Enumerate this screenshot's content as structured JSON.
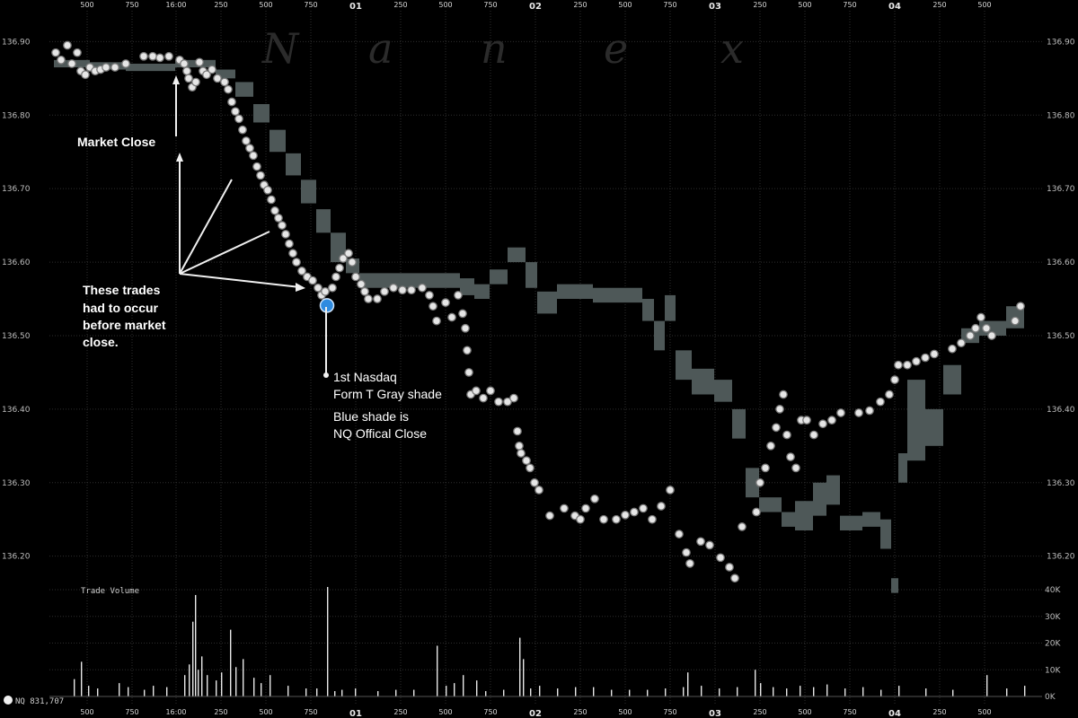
{
  "chart_data": {
    "type": "scatter",
    "watermark": "Nanex",
    "symbol_label": "NQ 831,707",
    "volume_title": "Trade Volume",
    "y_ticks": [
      "136.90",
      "136.80",
      "136.70",
      "136.60",
      "136.50",
      "136.40",
      "136.30",
      "136.20"
    ],
    "y_range": [
      136.13,
      136.92
    ],
    "vol_ticks": [
      "40K",
      "30K",
      "20K",
      "10K",
      "0K"
    ],
    "vol_range": [
      0,
      40000
    ],
    "x_ticks": [
      {
        "x": 97,
        "label": "500",
        "bold": false
      },
      {
        "x": 147,
        "label": "750",
        "bold": false
      },
      {
        "x": 196,
        "label": "16:00",
        "bold": false
      },
      {
        "x": 246,
        "label": "250",
        "bold": false
      },
      {
        "x": 296,
        "label": "500",
        "bold": false
      },
      {
        "x": 346,
        "label": "750",
        "bold": false
      },
      {
        "x": 396,
        "label": "01",
        "bold": true
      },
      {
        "x": 446,
        "label": "250",
        "bold": false
      },
      {
        "x": 496,
        "label": "500",
        "bold": false
      },
      {
        "x": 546,
        "label": "750",
        "bold": false
      },
      {
        "x": 596,
        "label": "02",
        "bold": true
      },
      {
        "x": 646,
        "label": "250",
        "bold": false
      },
      {
        "x": 696,
        "label": "500",
        "bold": false
      },
      {
        "x": 746,
        "label": "750",
        "bold": false
      },
      {
        "x": 796,
        "label": "03",
        "bold": true
      },
      {
        "x": 846,
        "label": "250",
        "bold": false
      },
      {
        "x": 896,
        "label": "500",
        "bold": false
      },
      {
        "x": 946,
        "label": "750",
        "bold": false
      },
      {
        "x": 996,
        "label": "04",
        "bold": true
      },
      {
        "x": 1046,
        "label": "250",
        "bold": false
      },
      {
        "x": 1096,
        "label": "500",
        "bold": false
      }
    ],
    "bid_ask_band": [
      [
        60,
        136.875,
        136.865
      ],
      [
        100,
        136.872,
        136.862
      ],
      [
        140,
        136.87,
        136.86
      ],
      [
        195,
        136.875,
        136.865
      ],
      [
        240,
        136.862,
        136.85
      ],
      [
        262,
        136.845,
        136.825
      ],
      [
        282,
        136.815,
        136.79
      ],
      [
        300,
        136.78,
        136.75
      ],
      [
        318,
        136.748,
        136.718
      ],
      [
        335,
        136.712,
        136.68
      ],
      [
        352,
        136.672,
        136.64
      ],
      [
        368,
        136.64,
        136.6
      ],
      [
        385,
        136.605,
        136.585
      ],
      [
        400,
        136.585,
        136.565
      ],
      [
        440,
        136.585,
        136.565
      ],
      [
        480,
        136.585,
        136.565
      ],
      [
        512,
        136.578,
        136.555
      ],
      [
        528,
        136.57,
        136.55
      ],
      [
        545,
        136.59,
        136.57
      ],
      [
        565,
        136.62,
        136.6
      ],
      [
        585,
        136.6,
        136.565
      ],
      [
        598,
        136.56,
        136.53
      ],
      [
        620,
        136.57,
        136.55
      ],
      [
        660,
        136.565,
        136.545
      ],
      [
        700,
        136.565,
        136.545
      ],
      [
        715,
        136.55,
        136.52
      ],
      [
        728,
        136.52,
        136.48
      ],
      [
        740,
        136.555,
        136.52
      ],
      [
        752,
        136.48,
        136.44
      ],
      [
        770,
        136.455,
        136.42
      ],
      [
        795,
        136.44,
        136.41
      ],
      [
        815,
        136.4,
        136.36
      ],
      [
        830,
        136.32,
        136.28
      ],
      [
        845,
        136.28,
        136.26
      ],
      [
        870,
        136.26,
        136.24
      ],
      [
        885,
        136.275,
        136.235
      ],
      [
        905,
        136.3,
        136.255
      ],
      [
        920,
        136.31,
        136.27
      ],
      [
        935,
        136.255,
        136.235
      ],
      [
        960,
        136.26,
        136.24
      ],
      [
        980,
        136.25,
        136.21
      ],
      [
        992,
        136.17,
        136.15
      ],
      [
        1000,
        136.34,
        136.3
      ],
      [
        1010,
        136.44,
        136.33
      ],
      [
        1030,
        136.4,
        136.35
      ],
      [
        1050,
        136.46,
        136.42
      ],
      [
        1070,
        136.51,
        136.49
      ],
      [
        1090,
        136.52,
        136.5
      ],
      [
        1120,
        136.54,
        136.51
      ],
      [
        1140,
        136.545,
        136.52
      ]
    ],
    "trades": [
      [
        62,
        136.885
      ],
      [
        68,
        136.875
      ],
      [
        75,
        136.895
      ],
      [
        80,
        136.87
      ],
      [
        86,
        136.885
      ],
      [
        90,
        136.86
      ],
      [
        95,
        136.855
      ],
      [
        100,
        136.865
      ],
      [
        106,
        136.86
      ],
      [
        112,
        136.862
      ],
      [
        118,
        136.865
      ],
      [
        128,
        136.865
      ],
      [
        140,
        136.87
      ],
      [
        160,
        136.88
      ],
      [
        170,
        136.88
      ],
      [
        178,
        136.878
      ],
      [
        188,
        136.88
      ],
      [
        200,
        136.875
      ],
      [
        205,
        136.87
      ],
      [
        208,
        136.86
      ],
      [
        210,
        136.85
      ],
      [
        214,
        136.838
      ],
      [
        218,
        136.845
      ],
      [
        222,
        136.872
      ],
      [
        226,
        136.86
      ],
      [
        230,
        136.855
      ],
      [
        236,
        136.862
      ],
      [
        242,
        136.85
      ],
      [
        250,
        136.845
      ],
      [
        254,
        136.835
      ],
      [
        258,
        136.818
      ],
      [
        262,
        136.805
      ],
      [
        266,
        136.795
      ],
      [
        270,
        136.78
      ],
      [
        274,
        136.765
      ],
      [
        278,
        136.755
      ],
      [
        282,
        136.745
      ],
      [
        286,
        136.73
      ],
      [
        290,
        136.718
      ],
      [
        294,
        136.705
      ],
      [
        298,
        136.698
      ],
      [
        302,
        136.685
      ],
      [
        306,
        136.67
      ],
      [
        310,
        136.66
      ],
      [
        314,
        136.65
      ],
      [
        318,
        136.638
      ],
      [
        322,
        136.625
      ],
      [
        326,
        136.612
      ],
      [
        330,
        136.6
      ],
      [
        336,
        136.588
      ],
      [
        342,
        136.58
      ],
      [
        348,
        136.575
      ],
      [
        354,
        136.565
      ],
      [
        358,
        136.555
      ],
      [
        362,
        136.56
      ],
      [
        370,
        136.565
      ],
      [
        374,
        136.58
      ],
      [
        378,
        136.592
      ],
      [
        382,
        136.605
      ],
      [
        388,
        136.612
      ],
      [
        392,
        136.6
      ],
      [
        396,
        136.58
      ],
      [
        402,
        136.57
      ],
      [
        406,
        136.56
      ],
      [
        410,
        136.55
      ],
      [
        420,
        136.55
      ],
      [
        428,
        136.56
      ],
      [
        438,
        136.565
      ],
      [
        448,
        136.562
      ],
      [
        458,
        136.562
      ],
      [
        470,
        136.565
      ],
      [
        478,
        136.555
      ],
      [
        482,
        136.54
      ],
      [
        486,
        136.52
      ],
      [
        496,
        136.545
      ],
      [
        503,
        136.525
      ],
      [
        510,
        136.555
      ],
      [
        515,
        136.53
      ],
      [
        518,
        136.51
      ],
      [
        520,
        136.48
      ],
      [
        522,
        136.45
      ],
      [
        524,
        136.42
      ],
      [
        530,
        136.425
      ],
      [
        538,
        136.415
      ],
      [
        546,
        136.425
      ],
      [
        555,
        136.41
      ],
      [
        565,
        136.41
      ],
      [
        572,
        136.415
      ],
      [
        576,
        136.37
      ],
      [
        578,
        136.35
      ],
      [
        580,
        136.34
      ],
      [
        586,
        136.33
      ],
      [
        590,
        136.32
      ],
      [
        595,
        136.3
      ],
      [
        600,
        136.29
      ],
      [
        612,
        136.255
      ],
      [
        628,
        136.265
      ],
      [
        640,
        136.255
      ],
      [
        646,
        136.25
      ],
      [
        652,
        136.265
      ],
      [
        662,
        136.278
      ],
      [
        672,
        136.25
      ],
      [
        686,
        136.25
      ],
      [
        696,
        136.256
      ],
      [
        706,
        136.26
      ],
      [
        716,
        136.265
      ],
      [
        726,
        136.25
      ],
      [
        736,
        136.268
      ],
      [
        746,
        136.29
      ],
      [
        756,
        136.23
      ],
      [
        764,
        136.205
      ],
      [
        768,
        136.19
      ],
      [
        780,
        136.22
      ],
      [
        790,
        136.215
      ],
      [
        802,
        136.198
      ],
      [
        812,
        136.185
      ],
      [
        818,
        136.17
      ],
      [
        826,
        136.24
      ],
      [
        842,
        136.26
      ],
      [
        846,
        136.3
      ],
      [
        852,
        136.32
      ],
      [
        858,
        136.35
      ],
      [
        864,
        136.375
      ],
      [
        868,
        136.4
      ],
      [
        872,
        136.42
      ],
      [
        876,
        136.365
      ],
      [
        880,
        136.335
      ],
      [
        886,
        136.32
      ],
      [
        892,
        136.385
      ],
      [
        898,
        136.385
      ],
      [
        906,
        136.365
      ],
      [
        916,
        136.38
      ],
      [
        926,
        136.385
      ],
      [
        936,
        136.395
      ],
      [
        956,
        136.395
      ],
      [
        968,
        136.398
      ],
      [
        980,
        136.41
      ],
      [
        990,
        136.42
      ],
      [
        996,
        136.44
      ],
      [
        1000,
        136.46
      ],
      [
        1010,
        136.46
      ],
      [
        1020,
        136.465
      ],
      [
        1030,
        136.47
      ],
      [
        1040,
        136.475
      ],
      [
        1060,
        136.482
      ],
      [
        1070,
        136.49
      ],
      [
        1080,
        136.5
      ],
      [
        1086,
        136.51
      ],
      [
        1092,
        136.525
      ],
      [
        1098,
        136.51
      ],
      [
        1104,
        136.5
      ],
      [
        1130,
        136.52
      ],
      [
        1136,
        136.54
      ]
    ],
    "official_close": [
      364,
      136.541
    ],
    "volume_bars": [
      [
        82,
        6500
      ],
      [
        90,
        13000
      ],
      [
        98,
        4000
      ],
      [
        108,
        3000
      ],
      [
        132,
        5000
      ],
      [
        142,
        3500
      ],
      [
        160,
        2500
      ],
      [
        170,
        4000
      ],
      [
        185,
        3500
      ],
      [
        205,
        8000
      ],
      [
        210,
        12000
      ],
      [
        214,
        28000
      ],
      [
        217,
        38000
      ],
      [
        220,
        10000
      ],
      [
        224,
        15000
      ],
      [
        230,
        8000
      ],
      [
        240,
        6000
      ],
      [
        246,
        9000
      ],
      [
        256,
        25000
      ],
      [
        262,
        11000
      ],
      [
        270,
        14000
      ],
      [
        282,
        7000
      ],
      [
        290,
        5000
      ],
      [
        300,
        8000
      ],
      [
        320,
        4000
      ],
      [
        340,
        3000
      ],
      [
        352,
        3000
      ],
      [
        364,
        41000
      ],
      [
        372,
        2000
      ],
      [
        380,
        2500
      ],
      [
        395,
        3000
      ],
      [
        420,
        2000
      ],
      [
        440,
        2500
      ],
      [
        460,
        2500
      ],
      [
        486,
        19000
      ],
      [
        496,
        4000
      ],
      [
        505,
        5000
      ],
      [
        515,
        8000
      ],
      [
        530,
        6000
      ],
      [
        540,
        2000
      ],
      [
        560,
        2500
      ],
      [
        578,
        22000
      ],
      [
        582,
        14000
      ],
      [
        590,
        3000
      ],
      [
        600,
        4000
      ],
      [
        620,
        3000
      ],
      [
        640,
        3500
      ],
      [
        660,
        3500
      ],
      [
        680,
        2500
      ],
      [
        700,
        2500
      ],
      [
        720,
        2500
      ],
      [
        740,
        3000
      ],
      [
        760,
        3500
      ],
      [
        765,
        9000
      ],
      [
        780,
        4000
      ],
      [
        800,
        3000
      ],
      [
        820,
        3500
      ],
      [
        840,
        10000
      ],
      [
        846,
        5000
      ],
      [
        860,
        3500
      ],
      [
        875,
        3000
      ],
      [
        890,
        4000
      ],
      [
        905,
        3500
      ],
      [
        920,
        4500
      ],
      [
        940,
        3000
      ],
      [
        960,
        3500
      ],
      [
        980,
        2500
      ],
      [
        1000,
        4000
      ],
      [
        1030,
        3000
      ],
      [
        1060,
        2500
      ],
      [
        1098,
        8000
      ],
      [
        1120,
        3000
      ],
      [
        1140,
        4000
      ]
    ],
    "annotations": {
      "market_close": "Market Close",
      "trades_note": [
        "These trades",
        "had to occur",
        "before market",
        "close."
      ],
      "form_t": [
        "1st Nasdaq",
        "Form T Gray shade"
      ],
      "blue_close": [
        "Blue shade is",
        "NQ Offical Close"
      ]
    },
    "colors": {
      "background": "#000000",
      "band": "#4e5858",
      "trade_fill": "#e6e6e6",
      "trade_stroke": "#7a7a7a",
      "official_close": "#2f8be0",
      "grid": "#2e2e2e",
      "volume": "#e8e8e8"
    }
  }
}
